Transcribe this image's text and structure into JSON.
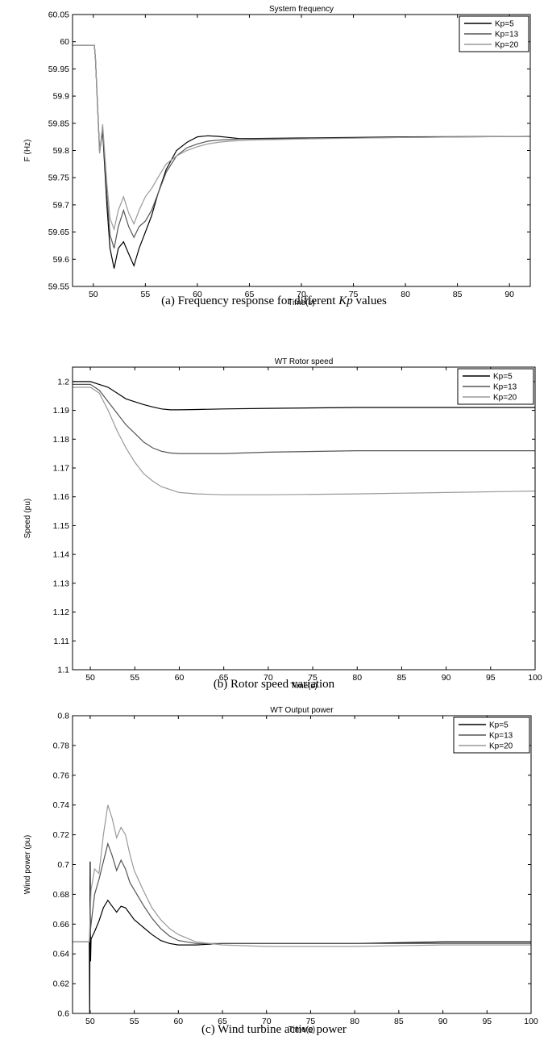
{
  "chart_data": [
    {
      "type": "line",
      "title": "System frequency",
      "xlabel": "Time(s)",
      "ylabel": "F (Hz)",
      "xlim": [
        48,
        92
      ],
      "ylim": [
        59.55,
        60.05
      ],
      "xticks": [
        50,
        55,
        60,
        65,
        70,
        75,
        80,
        85,
        90
      ],
      "yticks": [
        59.55,
        59.6,
        59.65,
        59.7,
        59.75,
        59.8,
        59.85,
        59.9,
        59.95,
        60,
        60.05
      ],
      "ytick_labels": [
        "59.55",
        "59.6",
        "59.65",
        "59.7",
        "59.75",
        "59.8",
        "59.85",
        "59.9",
        "59.95",
        "60",
        "60.05"
      ],
      "grid": false,
      "legend": "top-right",
      "caption_parts": [
        "(a) Frequency response for different ",
        "Kp",
        " values"
      ],
      "series": [
        {
          "name": "Kp=5",
          "color": "#000000",
          "x": [
            48,
            50.1,
            50.2,
            50.6,
            50.9,
            51.3,
            51.6,
            52.0,
            52.4,
            52.9,
            53.4,
            53.9,
            54.4,
            55.0,
            55.6,
            56.2,
            57.0,
            58.0,
            59.0,
            60.0,
            61.0,
            62.0,
            63.0,
            64.0,
            65.0,
            70.0,
            80.0,
            92.0
          ],
          "y": [
            59.993,
            59.993,
            59.97,
            59.8,
            59.835,
            59.7,
            59.62,
            59.583,
            59.62,
            59.632,
            59.61,
            59.588,
            59.62,
            59.65,
            59.68,
            59.72,
            59.765,
            59.8,
            59.815,
            59.825,
            59.827,
            59.826,
            59.824,
            59.822,
            59.822,
            59.823,
            59.825,
            59.826
          ]
        },
        {
          "name": "Kp=13",
          "color": "#555555",
          "x": [
            48,
            50.1,
            50.2,
            50.6,
            50.9,
            51.3,
            51.6,
            52.0,
            52.4,
            52.9,
            53.4,
            53.9,
            54.4,
            55.0,
            55.6,
            56.2,
            57.0,
            58.0,
            59.0,
            60.0,
            61.0,
            62.0,
            63.0,
            64.0,
            65.0,
            70.0,
            80.0,
            92.0
          ],
          "y": [
            59.993,
            59.993,
            59.97,
            59.795,
            59.84,
            59.72,
            59.645,
            59.62,
            59.66,
            59.69,
            59.66,
            59.64,
            59.66,
            59.67,
            59.69,
            59.72,
            59.76,
            59.79,
            59.805,
            59.812,
            59.817,
            59.819,
            59.82,
            59.821,
            59.821,
            59.822,
            59.824,
            59.826
          ]
        },
        {
          "name": "Kp=20",
          "color": "#999999",
          "x": [
            48,
            50.1,
            50.2,
            50.6,
            50.9,
            51.3,
            51.6,
            52.0,
            52.4,
            52.9,
            53.4,
            53.9,
            54.4,
            55.0,
            55.6,
            56.2,
            57.0,
            58.0,
            59.0,
            60.0,
            61.0,
            62.0,
            63.0,
            64.0,
            65.0,
            70.0,
            80.0,
            92.0
          ],
          "y": [
            59.993,
            59.993,
            59.97,
            59.795,
            59.848,
            59.74,
            59.675,
            59.655,
            59.69,
            59.715,
            59.685,
            59.665,
            59.69,
            59.715,
            59.73,
            59.75,
            59.775,
            59.79,
            59.8,
            59.807,
            59.812,
            59.815,
            59.817,
            59.818,
            59.819,
            59.821,
            59.824,
            59.826
          ]
        }
      ]
    },
    {
      "type": "line",
      "title": "WT Rotor speed",
      "xlabel": "Time(s)",
      "ylabel": "Speed (pu)",
      "xlim": [
        48,
        100
      ],
      "ylim": [
        1.1,
        1.205
      ],
      "xticks": [
        50,
        55,
        60,
        65,
        70,
        75,
        80,
        85,
        90,
        95,
        100
      ],
      "yticks": [
        1.1,
        1.11,
        1.12,
        1.13,
        1.14,
        1.15,
        1.16,
        1.17,
        1.18,
        1.19,
        1.2
      ],
      "ytick_labels": [
        "1.1",
        "1.11",
        "1.12",
        "1.13",
        "1.14",
        "1.15",
        "1.16",
        "1.17",
        "1.18",
        "1.19",
        "1.2"
      ],
      "grid": false,
      "legend": "top-right",
      "caption_parts": [
        "(b) Rotor speed variation"
      ],
      "series": [
        {
          "name": "Kp=5",
          "color": "#000000",
          "x": [
            48,
            50,
            51,
            52,
            53,
            54,
            55,
            56,
            57,
            58,
            59,
            60,
            62,
            65,
            70,
            80,
            90,
            100
          ],
          "y": [
            1.2,
            1.2,
            1.199,
            1.198,
            1.196,
            1.194,
            1.193,
            1.192,
            1.1912,
            1.1905,
            1.1902,
            1.1902,
            1.1903,
            1.1905,
            1.1907,
            1.191,
            1.191,
            1.191
          ]
        },
        {
          "name": "Kp=13",
          "color": "#555555",
          "x": [
            48,
            50,
            51,
            52,
            53,
            54,
            55,
            56,
            57,
            58,
            59,
            60,
            62,
            65,
            70,
            80,
            90,
            100
          ],
          "y": [
            1.199,
            1.199,
            1.197,
            1.193,
            1.189,
            1.185,
            1.182,
            1.179,
            1.177,
            1.1758,
            1.1752,
            1.175,
            1.175,
            1.175,
            1.1755,
            1.176,
            1.176,
            1.176
          ]
        },
        {
          "name": "Kp=20",
          "color": "#999999",
          "x": [
            48,
            50,
            51,
            52,
            53,
            54,
            55,
            56,
            57,
            58,
            59,
            60,
            62,
            65,
            70,
            80,
            90,
            100
          ],
          "y": [
            1.198,
            1.198,
            1.196,
            1.19,
            1.183,
            1.177,
            1.172,
            1.168,
            1.1655,
            1.1635,
            1.1625,
            1.1615,
            1.161,
            1.1607,
            1.1607,
            1.161,
            1.1615,
            1.162
          ]
        }
      ]
    },
    {
      "type": "line",
      "title": "WT Output power",
      "xlabel": "Time(s)",
      "ylabel": "Wind power (pu)",
      "xlim": [
        48,
        100
      ],
      "ylim": [
        0.6,
        0.8
      ],
      "xticks": [
        50,
        55,
        60,
        65,
        70,
        75,
        80,
        85,
        90,
        95,
        100
      ],
      "yticks": [
        0.6,
        0.62,
        0.64,
        0.66,
        0.68,
        0.7,
        0.72,
        0.74,
        0.76,
        0.78,
        0.8
      ],
      "ytick_labels": [
        "0.6",
        "0.62",
        "0.64",
        "0.66",
        "0.68",
        "0.7",
        "0.72",
        "0.74",
        "0.76",
        "0.78",
        "0.8"
      ],
      "grid": false,
      "legend": "top-right",
      "caption_parts": [
        "(c) Wind turbine active power"
      ],
      "series": [
        {
          "name": "Kp=5",
          "color": "#000000",
          "x": [
            48,
            49.9,
            49.95,
            50.0,
            50.05,
            50.1,
            50.5,
            51.0,
            51.5,
            52.0,
            52.5,
            53.0,
            53.5,
            54.0,
            54.5,
            55.0,
            56.0,
            57.0,
            58.0,
            59.0,
            60.0,
            62.0,
            65.0,
            70.0,
            80.0,
            90.0,
            100.0
          ],
          "y": [
            0.648,
            0.648,
            0.6,
            0.702,
            0.635,
            0.65,
            0.655,
            0.662,
            0.671,
            0.676,
            0.672,
            0.668,
            0.672,
            0.671,
            0.667,
            0.663,
            0.658,
            0.653,
            0.649,
            0.647,
            0.646,
            0.646,
            0.647,
            0.647,
            0.647,
            0.648,
            0.648
          ]
        },
        {
          "name": "Kp=13",
          "color": "#555555",
          "x": [
            48,
            49.9,
            50.1,
            50.5,
            51.0,
            51.5,
            52.0,
            52.5,
            53.0,
            53.5,
            54.0,
            54.5,
            55.0,
            56.0,
            57.0,
            58.0,
            59.0,
            60.0,
            62.0,
            65.0,
            70.0,
            80.0,
            90.0,
            100.0
          ],
          "y": [
            0.648,
            0.648,
            0.66,
            0.68,
            0.69,
            0.702,
            0.714,
            0.706,
            0.696,
            0.703,
            0.697,
            0.688,
            0.683,
            0.673,
            0.664,
            0.657,
            0.652,
            0.649,
            0.647,
            0.647,
            0.647,
            0.647,
            0.647,
            0.647
          ]
        },
        {
          "name": "Kp=20",
          "color": "#999999",
          "x": [
            48,
            49.9,
            50.1,
            50.5,
            51.0,
            51.5,
            52.0,
            52.5,
            53.0,
            53.5,
            54.0,
            54.5,
            55.0,
            56.0,
            57.0,
            58.0,
            59.0,
            60.0,
            62.0,
            65.0,
            70.0,
            80.0,
            90.0,
            100.0
          ],
          "y": [
            0.648,
            0.648,
            0.683,
            0.697,
            0.694,
            0.72,
            0.74,
            0.731,
            0.718,
            0.725,
            0.72,
            0.707,
            0.696,
            0.683,
            0.671,
            0.663,
            0.657,
            0.653,
            0.648,
            0.646,
            0.645,
            0.645,
            0.646,
            0.646
          ]
        }
      ]
    }
  ]
}
